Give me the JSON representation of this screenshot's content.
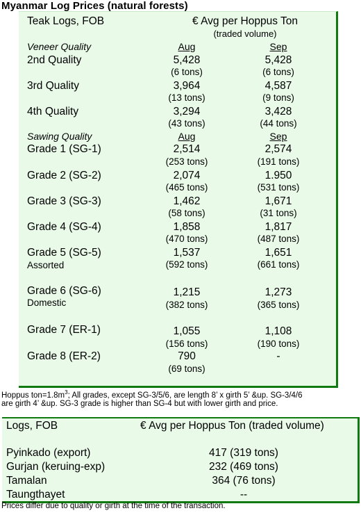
{
  "title": "Myanmar Log Prices (natural forests)",
  "teak": {
    "header_left": "Teak Logs, FOB",
    "header_right": "€ Avg per Hoppus Ton",
    "header_right_sub": "(traded volume)",
    "veneer": {
      "label": "Veneer Quality",
      "col1": "Aug",
      "col2": "Sep",
      "rows": [
        {
          "name": "2nd Quality",
          "aug": "5,428",
          "aug_vol": "(6 tons)",
          "sep": "5,428",
          "sep_vol": "(6 tons)"
        },
        {
          "name": "3rd Quality",
          "aug": "3,964",
          "aug_vol": "(13 tons)",
          "sep": "4,587",
          "sep_vol": "(9 tons)"
        },
        {
          "name": "4th Quality",
          "aug": "3,294",
          "aug_vol": "(43 tons)",
          "sep": "3,428",
          "sep_vol": "(44 tons)"
        }
      ]
    },
    "sawing": {
      "label": "Sawing Quality",
      "col1": "Aug",
      "col2": "Sep",
      "rows": [
        {
          "name": "Grade 1 (SG-1)",
          "aug": "2,514",
          "aug_vol": "(253 tons)",
          "sep": "2,574",
          "sep_vol": "(191 tons)"
        },
        {
          "name": "Grade 2 (SG-2)",
          "aug": "2,074",
          "aug_vol": "(465 tons)",
          "sep": "1.950",
          "sep_vol": "(531 tons)"
        },
        {
          "name": "Grade 3 (SG-3)",
          "aug": "1,462",
          "aug_vol": "(58 tons)",
          "sep": "1,671",
          "sep_vol": "(31 tons)"
        },
        {
          "name": "Grade 4 (SG-4)",
          "aug": "1,858",
          "aug_vol": "(470 tons)",
          "sep": "1,817",
          "sep_vol": "(487 tons)"
        },
        {
          "name": "Grade 5 (SG-5)",
          "sub": "Assorted",
          "aug": "1,537",
          "aug_vol": "(592 tons)",
          "sep": "1,651",
          "sep_vol": "(661 tons)"
        },
        {
          "name": "Grade 6 (SG-6)",
          "sub": "Domestic",
          "aug": "1,215",
          "aug_vol": "(382 tons)",
          "sep": "1,273",
          "sep_vol": "(365 tons)"
        },
        {
          "name": "Grade 7 (ER-1)",
          "aug": "1,055",
          "aug_vol": "(156 tons)",
          "sep": "1,108",
          "sep_vol": "(190 tons)"
        },
        {
          "name": "Grade 8 (ER-2)",
          "aug": "790",
          "aug_vol": "(69 tons)",
          "sep": "-",
          "sep_vol": ""
        }
      ]
    }
  },
  "note_line1_a": "Hoppus ton=1.8m",
  "note_line1_sup": "3",
  "note_line1_b": "; All grades, except SG-3/5/6, are length 8’ x girth 5’ &up. SG-3/4/6",
  "note_line2": "are girth 4’ &up. SG-3 grade is higher than SG-4 but with lower girth and price.",
  "logs": {
    "header_left": "Logs, FOB",
    "header_right": "€ Avg per Hoppus Ton (traded volume)",
    "rows": [
      {
        "name": "Pyinkado (export)",
        "value": "417 (319 tons)"
      },
      {
        "name": "Gurjan (keruing-exp)",
        "value": "232 (469 tons)"
      },
      {
        "name": "Tamalan",
        "value": "364 (76 tons)"
      },
      {
        "name": "Taungthayet",
        "value": "--"
      }
    ]
  },
  "footer": "Prices differ due to quality or girth at the time of the transaction."
}
